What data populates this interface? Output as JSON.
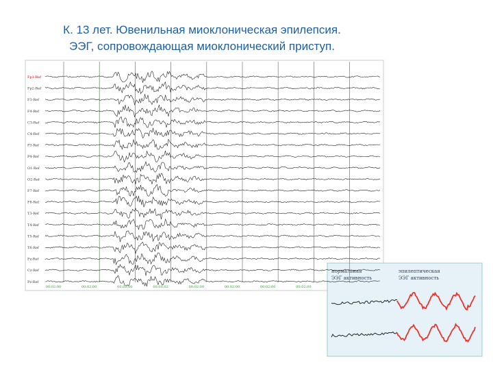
{
  "header": {
    "title_line1": "К. 13 лет. Ювенильная миоклоническая эпилепсия.",
    "title_line2": "ЭЭГ, сопровождающая миоклонический приступ."
  },
  "eeg": {
    "channels": [
      "Fp1-Ref",
      "Fp2-Ref",
      "F3-Ref",
      "F4-Ref",
      "C3-Ref",
      "C4-Ref",
      "P3-Ref",
      "P4-Ref",
      "O1-Ref",
      "O2-Ref",
      "F7-Ref",
      "F8-Ref",
      "T3-Ref",
      "T4-Ref",
      "T5-Ref",
      "T6-Ref",
      "Fz-Ref",
      "Cz-Ref",
      "Pz-Ref"
    ],
    "times": [
      "00:02:00",
      "00:02:00",
      "00:02:00",
      "00:00:02",
      "00:02:00",
      "00:02:00",
      "00:02:00",
      "00:02:00"
    ]
  },
  "inset": {
    "normal_line1": "нормальная",
    "normal_line2": "ЭЭГ активность",
    "epi_line1": "эпилептическая",
    "epi_line2": "ЭЭГ активность"
  }
}
